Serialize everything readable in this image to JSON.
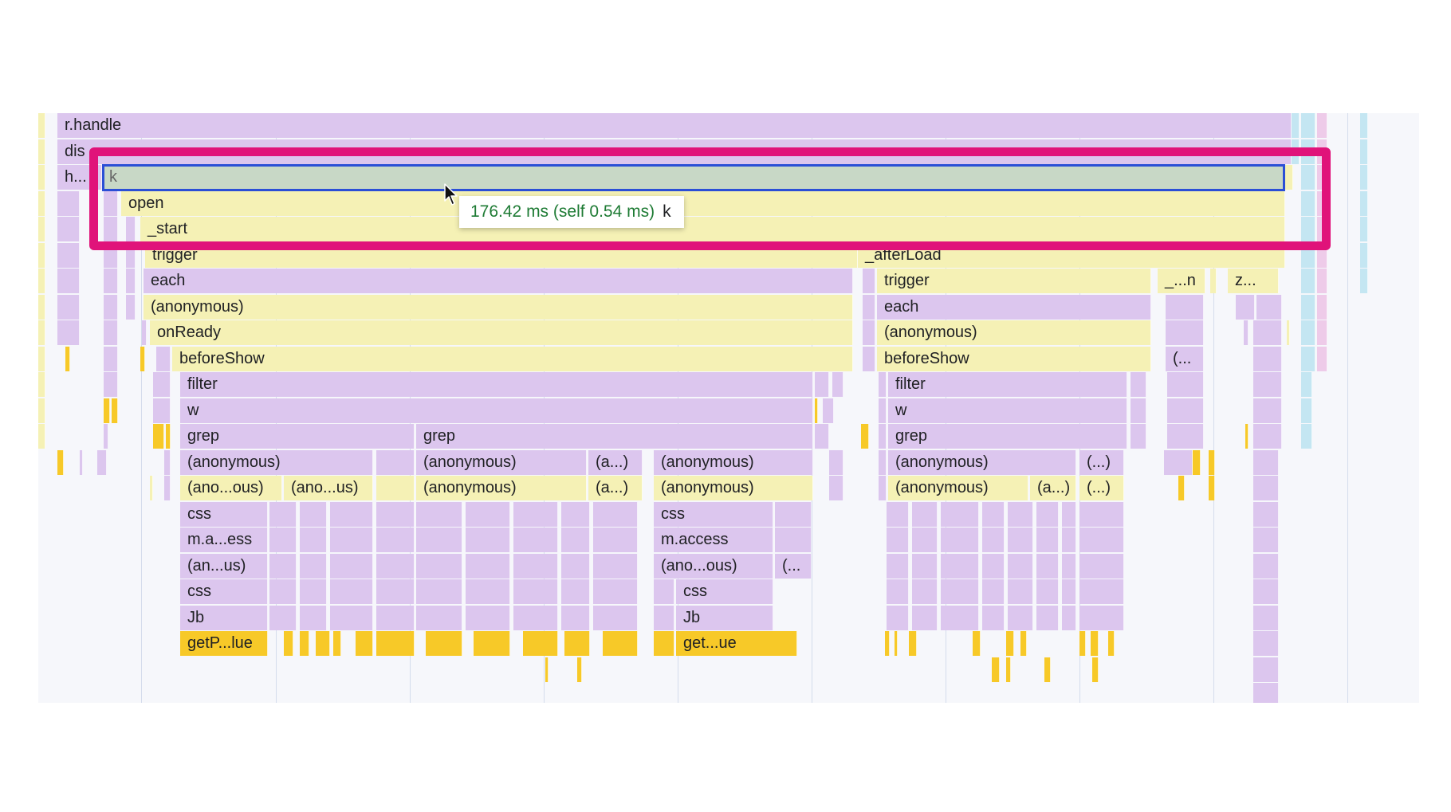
{
  "colors": {
    "purple": "#dcc6ee",
    "yellow": "#f5f1b5",
    "gold": "#f7c928",
    "selected": "#c8d8c6",
    "cyan": "#c4e6f2",
    "pink": "#eecbe9",
    "highlight": "#e0137a",
    "selection_outline": "#2b4fd6"
  },
  "labels": {
    "r_handle": "r.handle",
    "dispatch": "dis",
    "h": "h...",
    "k": "k",
    "open": "open",
    "start": "_start",
    "trigger": "trigger",
    "afterload": "_afterLoad",
    "each": "each",
    "anonymous": "(anonymous)",
    "onready": "onReady",
    "beforeshow": "beforeShow",
    "filter": "filter",
    "w": "w",
    "grep": "grep",
    "a_paren": "(a...)",
    "dots_paren": "(...)",
    "ano_ous": "(ano...ous)",
    "ano_us": "(ano...us)",
    "css": "css",
    "m_a_ess": "m.a...ess",
    "m_access": "m.access",
    "an_us": "(an...us)",
    "open_paren": "(...",
    "jb": "Jb",
    "getp_lue": "getP...lue",
    "get_ue": "get...ue",
    "n_trunc": "_...n",
    "z_trunc": "z..."
  },
  "tooltip": {
    "time": "176.42 ms (self 0.54 ms)",
    "name": "k"
  },
  "cursor_icon": "mouse-pointer-icon"
}
